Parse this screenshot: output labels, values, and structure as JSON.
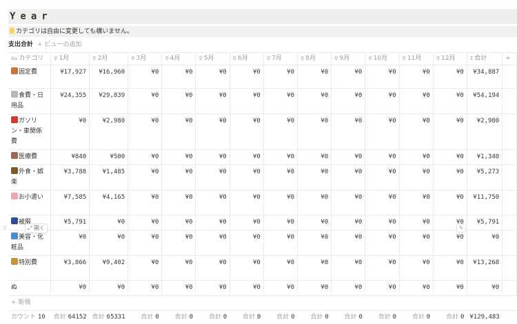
{
  "title": "Year",
  "callout": {
    "icon": "lightbulb-icon",
    "text": "カテゴリは自由に変更しても構いません。"
  },
  "views": {
    "active": "支出合計",
    "add": "+ ビューの追加"
  },
  "columns": [
    "カテゴリ",
    "1月",
    "2月",
    "3月",
    "4月",
    "5月",
    "6月",
    "7月",
    "8月",
    "9月",
    "10月",
    "11月",
    "12月",
    "合計",
    "+"
  ],
  "rows": [
    {
      "icon": "house-icon",
      "color": "#c9743a",
      "name": "固定費",
      "values": [
        "¥17,927",
        "¥16,960",
        "¥0",
        "¥0",
        "¥0",
        "¥0",
        "¥0",
        "¥0",
        "¥0",
        "¥0",
        "¥0",
        "¥0"
      ],
      "total": "¥34,887"
    },
    {
      "icon": "plate-icon",
      "color": "#b8b8b8",
      "name": "食費・日用品",
      "values": [
        "¥24,355",
        "¥29,839",
        "¥0",
        "¥0",
        "¥0",
        "¥0",
        "¥0",
        "¥0",
        "¥0",
        "¥0",
        "¥0",
        "¥0"
      ],
      "total": "¥54,194"
    },
    {
      "icon": "fuel-pump-icon",
      "color": "#d03a2f",
      "name": "ガソリン・車関係費",
      "values": [
        "¥0",
        "¥2,980",
        "¥0",
        "¥0",
        "¥0",
        "¥0",
        "¥0",
        "¥0",
        "¥0",
        "¥0",
        "¥0",
        "¥0"
      ],
      "total": "¥2,980"
    },
    {
      "icon": "hospital-icon",
      "color": "#9a6a5a",
      "name": "医療費",
      "values": [
        "¥840",
        "¥500",
        "¥0",
        "¥0",
        "¥0",
        "¥0",
        "¥0",
        "¥0",
        "¥0",
        "¥0",
        "¥0",
        "¥0"
      ],
      "total": "¥1,340"
    },
    {
      "icon": "camping-icon",
      "color": "#7a5a2a",
      "name": "外食・娯楽",
      "values": [
        "¥3,788",
        "¥1,485",
        "¥0",
        "¥0",
        "¥0",
        "¥0",
        "¥0",
        "¥0",
        "¥0",
        "¥0",
        "¥0",
        "¥0"
      ],
      "total": "¥5,273"
    },
    {
      "icon": "pig-icon",
      "color": "#e9a9b0",
      "name": "お小遣い",
      "values": [
        "¥7,585",
        "¥4,165",
        "¥0",
        "¥0",
        "¥0",
        "¥0",
        "¥0",
        "¥0",
        "¥0",
        "¥0",
        "¥0",
        "¥0"
      ],
      "total": "¥11,750"
    },
    {
      "icon": "jeans-icon",
      "color": "#2d4e9a",
      "name": "被服",
      "values": [
        "¥5,791",
        "¥0",
        "¥0",
        "¥0",
        "¥0",
        "¥0",
        "¥0",
        "¥0",
        "¥0",
        "¥0",
        "¥0",
        "¥0"
      ],
      "total": "¥5,791"
    },
    {
      "icon": "bath-icon",
      "color": "#4a8ad0",
      "name": "美容・化粧品",
      "values": [
        "¥0",
        "¥0",
        "¥0",
        "¥0",
        "¥0",
        "¥0",
        "¥0",
        "¥0",
        "¥0",
        "¥0",
        "¥0",
        "¥0"
      ],
      "total": "¥0"
    },
    {
      "icon": "money-bag-icon",
      "color": "#c9933a",
      "name": "特別費",
      "values": [
        "¥3,866",
        "¥9,402",
        "¥0",
        "¥0",
        "¥0",
        "¥0",
        "¥0",
        "¥0",
        "¥0",
        "¥0",
        "¥0",
        "¥0"
      ],
      "total": "¥13,268"
    },
    {
      "icon": "",
      "color": "",
      "name": "ぬ",
      "values": [
        "¥0",
        "¥0",
        "¥0",
        "¥0",
        "¥0",
        "¥0",
        "¥0",
        "¥0",
        "¥0",
        "¥0",
        "¥0",
        "¥0"
      ],
      "total": "¥0"
    }
  ],
  "new_row": "+ 新規",
  "footer": {
    "count_label": "カウント",
    "count": "10",
    "sum_label": "合計",
    "sums": [
      "64152",
      "65331",
      "0",
      "0",
      "0",
      "0",
      "0",
      "0",
      "0",
      "0",
      "0",
      "0"
    ],
    "total": "¥129,483"
  },
  "hover": {
    "open": "⤢ 開く",
    "edit": "✎"
  }
}
